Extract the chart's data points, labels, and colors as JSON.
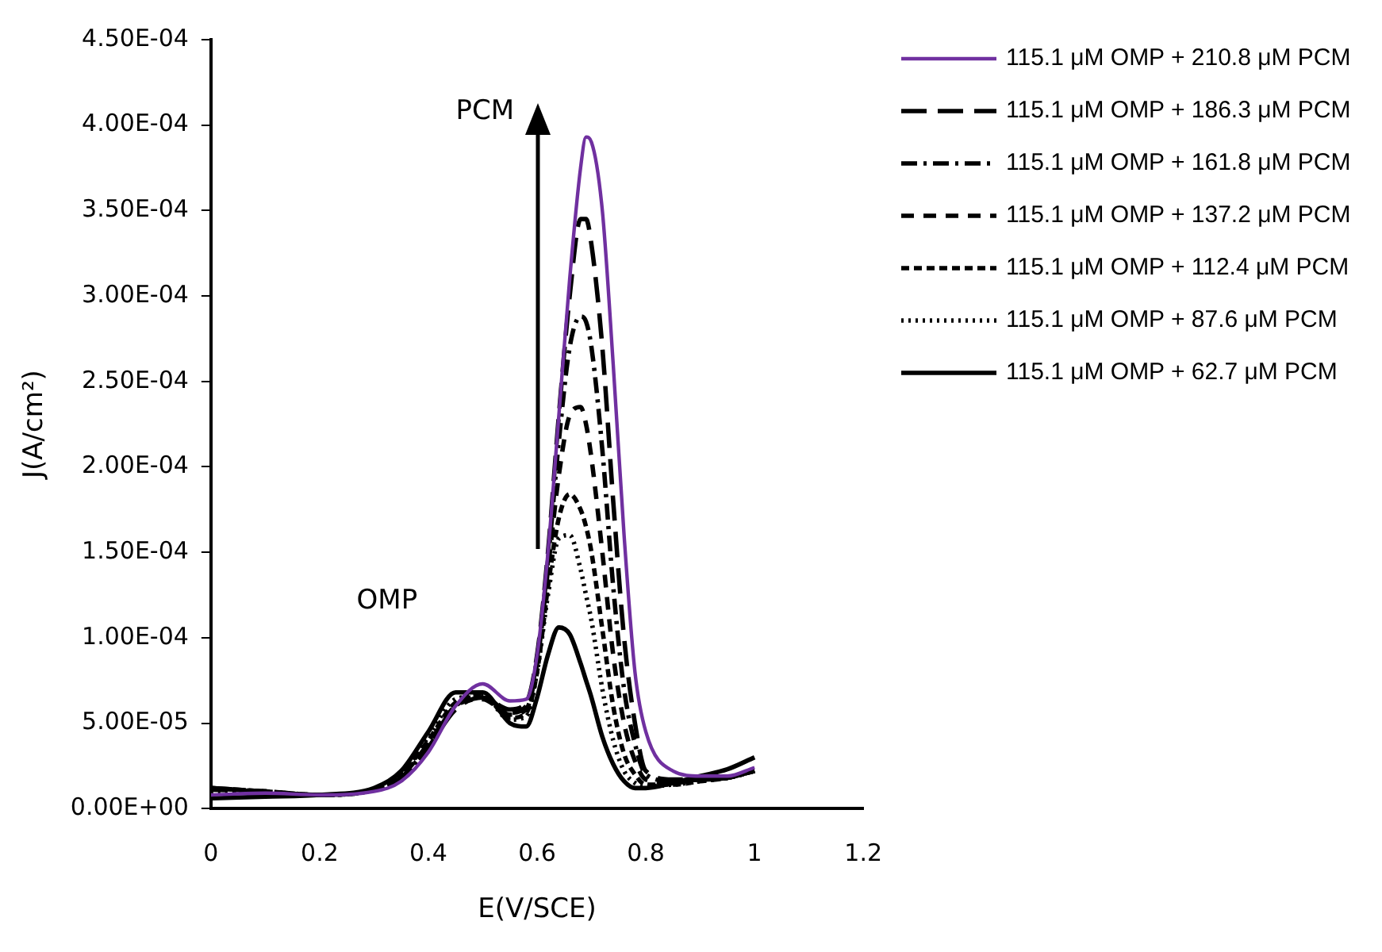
{
  "chart_data": {
    "type": "line",
    "xlabel": "E(V/SCE)",
    "ylabel": "J(A/cm²)",
    "annotations": [
      "PCM",
      "OMP"
    ],
    "x": [
      0,
      0.1,
      0.2,
      0.3,
      0.35,
      0.4,
      0.45,
      0.5,
      0.55,
      0.58,
      0.6,
      0.62,
      0.64,
      0.66,
      0.68,
      0.69,
      0.7,
      0.72,
      0.74,
      0.76,
      0.78,
      0.8,
      0.85,
      0.9,
      0.95,
      1
    ],
    "series": [
      {
        "name": "115.1 μM OMP + 210.8 μM PCM",
        "color": "#7030a0",
        "line_style": "solid",
        "values": [
          8e-06,
          9e-06,
          8e-06,
          1e-05,
          1.6e-05,
          3.3e-05,
          6e-05,
          7.3e-05,
          6.3e-05,
          6.4e-05,
          9e-05,
          0.00015,
          0.00023,
          0.00031,
          0.000375,
          0.000393,
          0.00039,
          0.00035,
          0.00026,
          0.00016,
          8e-05,
          4.5e-05,
          2.2e-05,
          1.9e-05,
          1.9e-05,
          2.4e-05
        ]
      },
      {
        "name": "115.1 μM OMP + 186.3 μM PCM",
        "color": "#000000",
        "line_style": "dashed",
        "values": [
          1.2e-05,
          1e-05,
          8e-06,
          1.1e-05,
          1.8e-05,
          3.6e-05,
          5.8e-05,
          6.5e-05,
          5.8e-05,
          6.2e-05,
          9e-05,
          0.00015,
          0.00023,
          0.0003,
          0.000345,
          0.000345,
          0.00033,
          0.00027,
          0.00018,
          0.0001,
          5e-05,
          2.2e-05,
          1.7e-05,
          1.7e-05,
          1.8e-05,
          2.2e-05
        ]
      },
      {
        "name": "115.1 μM OMP + 161.8 μM PCM",
        "color": "#000000",
        "line_style": "dashed",
        "values": [
          1.1e-05,
          1e-05,
          8e-06,
          1.1e-05,
          1.8e-05,
          3.7e-05,
          6e-05,
          6.6e-05,
          5.6e-05,
          6e-05,
          8.8e-05,
          0.000145,
          0.000215,
          0.00027,
          0.000288,
          0.000285,
          0.00027,
          0.00021,
          0.00013,
          7e-05,
          3.8e-05,
          2e-05,
          1.6e-05,
          1.7e-05,
          1.8e-05,
          2.2e-05
        ]
      },
      {
        "name": "115.1 μM OMP + 137.2 μM PCM",
        "color": "#000000",
        "line_style": "dashed",
        "values": [
          1.2e-05,
          1e-05,
          8e-06,
          1.1e-05,
          1.9e-05,
          3.8e-05,
          6e-05,
          6.4e-05,
          5.5e-05,
          5.8e-05,
          8.5e-05,
          0.00014,
          0.000195,
          0.00023,
          0.000235,
          0.000225,
          0.000205,
          0.00015,
          9e-05,
          5e-05,
          2.8e-05,
          1.7e-05,
          1.5e-05,
          1.7e-05,
          1.8e-05,
          2.2e-05
        ]
      },
      {
        "name": "115.1 μM OMP + 112.4 μM PCM",
        "color": "#000000",
        "line_style": "dashed",
        "values": [
          1.2e-05,
          1e-05,
          8e-06,
          1.1e-05,
          2e-05,
          4e-05,
          6.2e-05,
          6.6e-05,
          5.3e-05,
          5.6e-05,
          8e-05,
          0.00013,
          0.00017,
          0.000184,
          0.000175,
          0.000165,
          0.00015,
          0.000105,
          6e-05,
          3.2e-05,
          2e-05,
          1.4e-05,
          1.4e-05,
          1.6e-05,
          1.8e-05,
          2.2e-05
        ]
      },
      {
        "name": "115.1 μM OMP + 87.6 μM PCM",
        "color": "#000000",
        "line_style": "dotted",
        "values": [
          1e-05,
          9e-06,
          8e-06,
          1.1e-05,
          2e-05,
          4.2e-05,
          6.4e-05,
          6.6e-05,
          5.2e-05,
          5.4e-05,
          8e-05,
          0.000125,
          0.000158,
          0.00016,
          0.00014,
          0.000125,
          0.00011,
          7e-05,
          4e-05,
          2.2e-05,
          1.5e-05,
          1.3e-05,
          1.4e-05,
          1.6e-05,
          1.8e-05,
          2.2e-05
        ]
      },
      {
        "name": "115.1 μM OMP + 62.7 μM PCM",
        "color": "#000000",
        "line_style": "solid",
        "values": [
          6e-06,
          7e-06,
          8e-06,
          1.2e-05,
          2.2e-05,
          4.5e-05,
          6.8e-05,
          6.8e-05,
          5e-05,
          4.8e-05,
          6.5e-05,
          9e-05,
          0.000106,
          0.000102,
          8.5e-05,
          7.5e-05,
          6.5e-05,
          4.2e-05,
          2.6e-05,
          1.6e-05,
          1.2e-05,
          1.2e-05,
          1.5e-05,
          1.9e-05,
          2.3e-05,
          3e-05
        ]
      }
    ],
    "xlim": [
      0,
      1.2
    ],
    "xticks": [
      0,
      0.2,
      0.4,
      0.6,
      0.8,
      1,
      1.2
    ],
    "ylim": [
      0,
      0.00045
    ],
    "yticks": [
      {
        "value": 0,
        "label": "0.00E+00"
      },
      {
        "value": 5e-05,
        "label": "5.00E-05"
      },
      {
        "value": 0.0001,
        "label": "1.00E-04"
      },
      {
        "value": 0.00015,
        "label": "1.50E-04"
      },
      {
        "value": 0.0002,
        "label": "2.00E-04"
      },
      {
        "value": 0.00025,
        "label": "2.50E-04"
      },
      {
        "value": 0.0003,
        "label": "3.00E-04"
      },
      {
        "value": 0.00035,
        "label": "3.50E-04"
      },
      {
        "value": 0.0004,
        "label": "4.00E-04"
      },
      {
        "value": 0.00045,
        "label": "4.50E-04"
      }
    ],
    "grid": false,
    "legend": "right",
    "marker": "none"
  }
}
